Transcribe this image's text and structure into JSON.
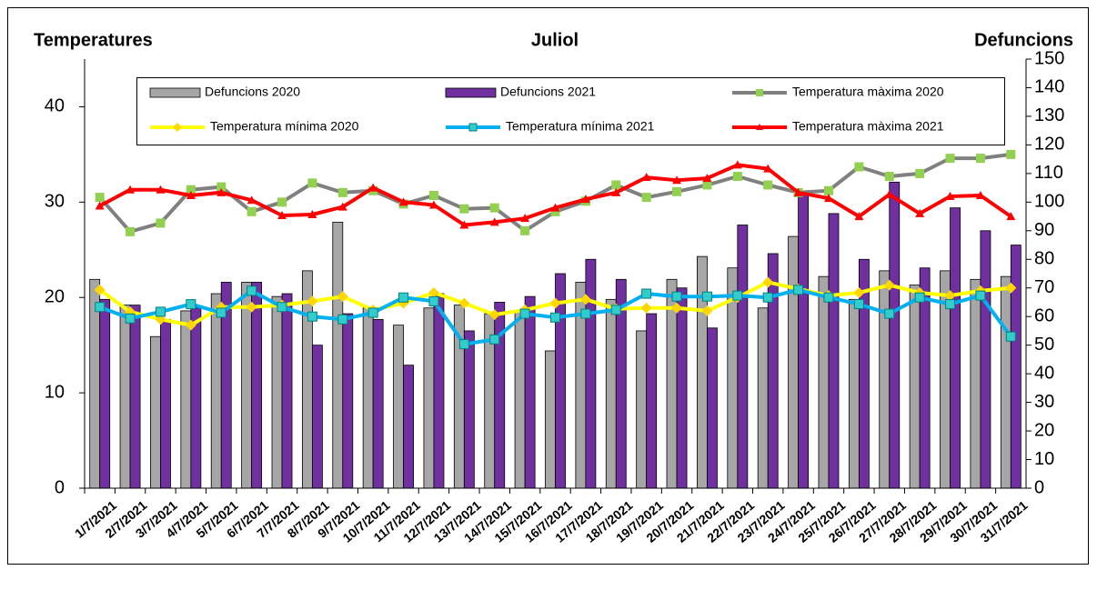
{
  "chart_data": {
    "type": "combo",
    "title": "Juliol",
    "ylabel": "Temperatures",
    "y2label": "Defuncions",
    "categories": [
      "1/7/2021",
      "2/7/2021",
      "3/7/2021",
      "4/7/2021",
      "5/7/2021",
      "6/7/2021",
      "7/7/2021",
      "8/7/2021",
      "9/7/2021",
      "10/7/2021",
      "11/7/2021",
      "12/7/2021",
      "13/7/2021",
      "14/7/2021",
      "15/7/2021",
      "16/7/2021",
      "17/7/2021",
      "18/7/2021",
      "19/7/2021",
      "20/7/2021",
      "21/7/2021",
      "22/7/2021",
      "23/7/2021",
      "24/7/2021",
      "25/7/2021",
      "26/7/2021",
      "27/7/2021",
      "28/7/2021",
      "29/7/2021",
      "30/7/2021",
      "31/7/2021"
    ],
    "ylim": [
      0,
      45
    ],
    "yticks": [
      0,
      10,
      20,
      30,
      40
    ],
    "y2lim": [
      0,
      150
    ],
    "y2ticks": [
      0,
      10,
      20,
      30,
      40,
      50,
      60,
      70,
      80,
      90,
      100,
      110,
      120,
      130,
      140,
      150
    ],
    "series": [
      {
        "name": "Defuncions 2020",
        "type": "bar",
        "axis": "y2",
        "color": "#a6a6a6",
        "values": [
          73,
          64,
          53,
          62,
          68,
          72,
          67,
          76,
          93,
          63,
          57,
          63,
          64,
          61,
          62,
          48,
          72,
          66,
          55,
          73,
          81,
          77,
          63,
          88,
          74,
          66,
          76,
          71,
          76,
          73,
          74
        ]
      },
      {
        "name": "Defuncions 2021",
        "type": "bar",
        "axis": "y2",
        "color": "#7030a0",
        "values": [
          66,
          64,
          59,
          63,
          72,
          72,
          68,
          50,
          61,
          59,
          43,
          68,
          55,
          65,
          67,
          75,
          80,
          73,
          61,
          70,
          56,
          92,
          82,
          103,
          96,
          80,
          107,
          77,
          98,
          90,
          85
        ]
      },
      {
        "name": "Temperatura màxima 2020",
        "type": "line",
        "color": "#808080",
        "marker": "square",
        "marker_color": "#92d050",
        "values": [
          30.5,
          26.9,
          27.8,
          31.3,
          31.6,
          29,
          30,
          32,
          31,
          31.2,
          29.8,
          30.7,
          29.3,
          29.4,
          27,
          29,
          30.1,
          31.8,
          30.5,
          31.1,
          31.8,
          32.7,
          31.8,
          31,
          31.2,
          33.7,
          32.7,
          33,
          34.6,
          34.6,
          35
        ]
      },
      {
        "name": "Temperatura mínima 2020",
        "type": "line",
        "color": "#ffff00",
        "marker": "diamond",
        "marker_color": "#ffd700",
        "values": [
          20.8,
          18.5,
          17.7,
          17.1,
          19,
          19,
          19.2,
          19.6,
          20.1,
          18.7,
          19.4,
          20.5,
          19.4,
          18.2,
          18.7,
          19.4,
          19.8,
          18.8,
          18.9,
          18.9,
          18.6,
          20,
          21.6,
          20.9,
          20.2,
          20.5,
          21.3,
          20.5,
          20.2,
          20.7,
          21
        ]
      },
      {
        "name": "Temperatura mínima 2021",
        "type": "line",
        "color": "#00b0f0",
        "marker": "square",
        "marker_color": "#33cccc",
        "values": [
          19,
          17.8,
          18.5,
          19.3,
          18.4,
          20.7,
          19,
          18,
          17.7,
          18.4,
          20,
          19.6,
          15.1,
          15.6,
          18.3,
          17.9,
          18.3,
          18.7,
          20.4,
          20.1,
          20.1,
          20.2,
          20,
          20.8,
          20,
          19.3,
          18.3,
          20,
          19.3,
          20.2,
          15.9
        ]
      },
      {
        "name": "Temperatura màxima 2021",
        "type": "line",
        "color": "#ff0000",
        "marker": "triangle",
        "marker_color": "#ff0000",
        "values": [
          29.6,
          31.3,
          31.3,
          30.7,
          31,
          30.2,
          28.6,
          28.7,
          29.5,
          31.5,
          30,
          29.7,
          27.6,
          27.9,
          28.3,
          29.4,
          30.3,
          31,
          32.6,
          32.3,
          32.5,
          33.9,
          33.5,
          31,
          30.4,
          28.5,
          30.8,
          28.8,
          30.6,
          30.7,
          28.5
        ]
      }
    ]
  }
}
